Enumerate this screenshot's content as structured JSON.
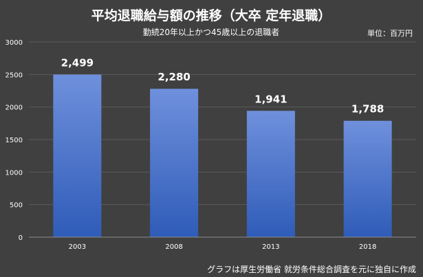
{
  "chart_data": {
    "type": "bar",
    "title": "平均退職給与額の推移（大卒 定年退職）",
    "subtitle": "勤続20年以上かつ45歳以上の退職者",
    "unit_label": "単位：百万円",
    "source_note": "グラフは厚生労働省 就労条件総合調査を元に独自に作成",
    "categories": [
      "2003",
      "2008",
      "2013",
      "2018"
    ],
    "values": [
      2499,
      2280,
      1941,
      1788
    ],
    "data_labels": [
      "2,499",
      "2,280",
      "1,941",
      "1,788"
    ],
    "y_ticks": [
      "0",
      "500",
      "1000",
      "1500",
      "2000",
      "2500",
      "3000"
    ],
    "ylim": [
      0,
      3000
    ],
    "grid": true,
    "legend": "none",
    "colors": {
      "background": "#404040",
      "bar_top": "#6f90dc",
      "bar_bottom": "#2f5cb8",
      "grid": "#5a5a5a",
      "axis": "#8c8c8c",
      "text": "#ffffff"
    }
  }
}
